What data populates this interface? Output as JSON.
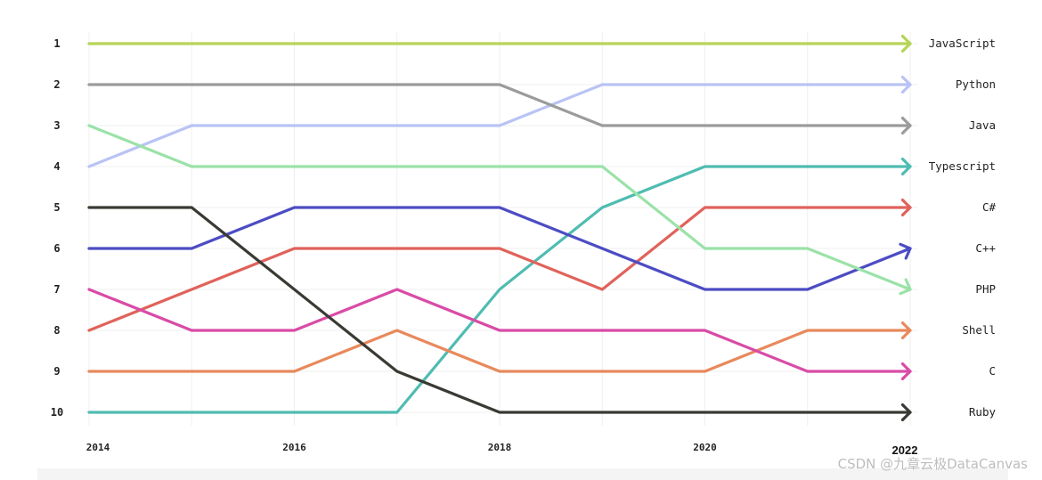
{
  "chart_data": {
    "type": "line",
    "title": "",
    "xlabel": "",
    "ylabel": "",
    "x": [
      2014,
      2015,
      2016,
      2017,
      2018,
      2019,
      2020,
      2021,
      2022
    ],
    "x_tick_labels": [
      "2014",
      "2016",
      "2018",
      "2020",
      "2022"
    ],
    "y_ticks": [
      "1",
      "2",
      "3",
      "4",
      "5",
      "6",
      "7",
      "8",
      "9",
      "10"
    ],
    "ylim": [
      1,
      10
    ],
    "y_inverted": true,
    "grid": true,
    "series": [
      {
        "name": "JavaScript",
        "color": "#b6d456",
        "values": [
          1,
          1,
          1,
          1,
          1,
          1,
          1,
          1,
          1
        ]
      },
      {
        "name": "Python",
        "color": "#b9c3f5",
        "values": [
          4,
          3,
          3,
          3,
          3,
          2,
          2,
          2,
          2
        ]
      },
      {
        "name": "Java",
        "color": "#9b9b9b",
        "values": [
          2,
          2,
          2,
          2,
          2,
          3,
          3,
          3,
          3
        ]
      },
      {
        "name": "Typescript",
        "color": "#4fbcb2",
        "values": [
          10,
          10,
          10,
          10,
          7,
          5,
          4,
          4,
          4
        ]
      },
      {
        "name": "C#",
        "color": "#e0625a",
        "values": [
          8,
          7,
          6,
          6,
          6,
          7,
          5,
          5,
          5
        ]
      },
      {
        "name": "C++",
        "color": "#4c4cc4",
        "values": [
          6,
          6,
          5,
          5,
          5,
          6,
          7,
          7,
          6
        ]
      },
      {
        "name": "PHP",
        "color": "#9be2a8",
        "values": [
          3,
          4,
          4,
          4,
          4,
          4,
          6,
          6,
          7
        ]
      },
      {
        "name": "Shell",
        "color": "#e8895c",
        "values": [
          9,
          9,
          9,
          8,
          9,
          9,
          9,
          8,
          8
        ]
      },
      {
        "name": "C",
        "color": "#d94ba6",
        "values": [
          7,
          8,
          8,
          7,
          8,
          8,
          8,
          9,
          9
        ]
      },
      {
        "name": "Ruby",
        "color": "#3a3a34",
        "values": [
          5,
          5,
          7,
          9,
          10,
          10,
          10,
          10,
          10
        ]
      }
    ]
  },
  "watermark": "CSDN @九章云极DataCanvas"
}
